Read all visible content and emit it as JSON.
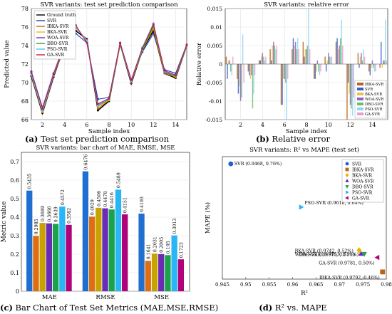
{
  "captions": {
    "a": {
      "letter": "(a)",
      "text": " Test set prediction comparison"
    },
    "b": {
      "letter": "(b)",
      "text": " Relative error"
    },
    "c": {
      "letter": "(c)",
      "text": " Bar Chart of Test Set Metrics (MAE,MSE,RMSE)"
    },
    "d": {
      "letter": "(d)",
      "text": " R² vs. MAPE"
    }
  },
  "chart_data": [
    {
      "id": "a",
      "type": "line",
      "title": "SVR variants: test set prediction comparison",
      "xlabel": "Sample index",
      "ylabel": "Predicted value",
      "xlim": [
        1,
        15
      ],
      "ylim": [
        66,
        78
      ],
      "xticks": [
        2,
        4,
        6,
        8,
        10,
        12,
        14
      ],
      "yticks": [
        66,
        68,
        70,
        72,
        74,
        76,
        78
      ],
      "x": [
        1,
        2,
        3,
        4,
        5,
        6,
        7,
        8,
        9,
        10,
        11,
        12,
        13,
        14,
        15
      ],
      "legend_position": "top-left",
      "series": [
        {
          "name": "Ground truth",
          "color": "#000000",
          "values": [
            70.7,
            66.7,
            70.6,
            74.1,
            75.6,
            74.7,
            67.0,
            68.0,
            74.2,
            69.9,
            73.5,
            75.6,
            71.0,
            70.5,
            74.0
          ]
        },
        {
          "name": "SVR",
          "color": "#1f3fb4",
          "values": [
            71.2,
            67.3,
            71.0,
            74.2,
            75.3,
            74.3,
            68.2,
            68.4,
            74.3,
            70.3,
            73.3,
            75.3,
            71.4,
            71.0,
            74.1
          ]
        },
        {
          "name": "IBKA-SVR",
          "color": "#d95f02",
          "values": [
            70.8,
            66.8,
            70.7,
            74.1,
            75.9,
            74.6,
            67.2,
            68.1,
            74.2,
            70.0,
            73.6,
            75.8,
            71.0,
            70.6,
            74.0
          ]
        },
        {
          "name": "BKA-SVR",
          "color": "#e6c000",
          "values": [
            70.9,
            66.9,
            70.8,
            74.1,
            76.0,
            74.5,
            67.4,
            68.1,
            74.2,
            70.1,
            73.5,
            76.0,
            71.1,
            70.6,
            74.0
          ]
        },
        {
          "name": "WOA-SVR",
          "color": "#7b2cbf",
          "values": [
            71.0,
            67.0,
            70.8,
            74.2,
            76.1,
            74.4,
            67.5,
            68.2,
            74.3,
            70.1,
            73.7,
            76.2,
            71.1,
            70.7,
            74.1
          ]
        },
        {
          "name": "DBO-SVR",
          "color": "#2ca02c",
          "values": [
            71.0,
            67.1,
            70.9,
            74.1,
            76.1,
            74.4,
            67.6,
            68.2,
            74.2,
            70.2,
            73.6,
            76.1,
            71.2,
            70.7,
            74.0
          ]
        },
        {
          "name": "PSO-SVR",
          "color": "#4fc3f7",
          "values": [
            70.9,
            67.0,
            70.8,
            74.2,
            76.0,
            74.5,
            67.5,
            68.3,
            74.3,
            70.2,
            73.8,
            76.4,
            71.2,
            70.8,
            74.1
          ]
        },
        {
          "name": "GA-SVR",
          "color": "#c2185b",
          "values": [
            71.1,
            67.2,
            70.9,
            74.2,
            76.2,
            74.3,
            67.7,
            68.3,
            74.3,
            70.3,
            73.7,
            76.3,
            71.3,
            70.8,
            74.1
          ]
        }
      ]
    },
    {
      "id": "b",
      "type": "bar",
      "title": "SVR variants: relative error",
      "xlabel": "Sample index",
      "ylabel": "Relative error",
      "xlim": [
        0.6,
        15.4
      ],
      "ylim": [
        -0.015,
        0.015
      ],
      "xticks": [
        2,
        4,
        6,
        8,
        10,
        12,
        14
      ],
      "yticks": [
        -0.015,
        -0.01,
        -0.005,
        0,
        0.005,
        0.01,
        0.015
      ],
      "ytick_labels": [
        "-0.015",
        "-0.01",
        "-0.005",
        "0",
        "0.005",
        "0.01",
        "0.015"
      ],
      "categories": [
        1,
        2,
        3,
        4,
        5,
        6,
        7,
        8,
        9,
        10,
        11,
        12,
        13,
        14,
        15
      ],
      "legend_position": "bottom-right",
      "series": [
        {
          "name": "IBKA-SVR",
          "color": "#b5651d",
          "values": [
            0.002,
            -0.004,
            -0.002,
            0.001,
            0.004,
            -0.011,
            0.004,
            0.006,
            -0.004,
            0.002,
            0.006,
            -0.015,
            0.003,
            -0.002,
            -0.001
          ]
        },
        {
          "name": "SVR",
          "color": "#3a5fcd",
          "values": [
            -0.004,
            -0.008,
            -0.003,
            0.001,
            0.001,
            -0.011,
            0.007,
            0.002,
            -0.004,
            -0.002,
            0.007,
            -0.005,
            -0.001,
            -0.003,
            0.006
          ]
        },
        {
          "name": "BKA-SVR",
          "color": "#e8c34a",
          "values": [
            0.001,
            -0.006,
            -0.004,
            0.002,
            0.005,
            -0.004,
            0.005,
            0.004,
            -0.002,
            0.001,
            0.004,
            -0.008,
            0.002,
            -0.001,
            -0.001
          ]
        },
        {
          "name": "WOA-SVR",
          "color": "#8e63c7",
          "values": [
            0.001,
            -0.01,
            -0.003,
            0.003,
            0.006,
            -0.004,
            0.006,
            0.004,
            0.001,
            0.003,
            0.005,
            -0.011,
            0.003,
            0.001,
            0.001
          ]
        },
        {
          "name": "DBO-SVR",
          "color": "#6dbf67",
          "values": [
            -0.002,
            -0.009,
            -0.012,
            0.002,
            0.005,
            -0.005,
            0.004,
            0.005,
            -0.002,
            0.002,
            0.007,
            -0.012,
            0.001,
            -0.001,
            0.001
          ]
        },
        {
          "name": "PSO-SVR",
          "color": "#8fd3f5",
          "values": [
            -0.003,
            0.008,
            -0.008,
            0.001,
            0.004,
            -0.015,
            0.007,
            0.015,
            -0.003,
            0.002,
            0.012,
            -0.014,
            0.004,
            -0.002,
            0.012
          ]
        },
        {
          "name": "GA-SVR",
          "color": "#e89fd0",
          "values": [
            0.002,
            -0.005,
            -0.003,
            0.002,
            0.005,
            -0.004,
            0.004,
            0.004,
            -0.002,
            0.002,
            0.005,
            -0.009,
            0.002,
            -0.002,
            0.001
          ]
        }
      ]
    },
    {
      "id": "c",
      "type": "bar",
      "title": "SVR variants: bar chart of MAE, RMSE, MSE",
      "xlabel": "",
      "ylabel": "Metric value",
      "ylim": [
        0,
        0.75
      ],
      "yticks": [
        0,
        0.1,
        0.2,
        0.3,
        0.4,
        0.5,
        0.6,
        0.7
      ],
      "ytick_labels": [
        "0",
        "0.1",
        "0.2",
        "0.3",
        "0.4",
        "0.5",
        "0.6",
        "0.7"
      ],
      "categories": [
        "MAE",
        "RMSE",
        "MSE"
      ],
      "series": [
        {
          "name": "SVR",
          "color": "#1f6fd1",
          "values": [
            0.5435,
            0.6476,
            0.4193
          ],
          "labels": [
            "0.5435",
            "0.6476",
            "0.4193"
          ]
        },
        {
          "name": "IBKA-SVR",
          "color": "#e06d10",
          "values": [
            0.2985,
            0.4029,
            0.1641
          ],
          "labels": [
            "0.2985",
            "0.4029",
            "0.1641"
          ]
        },
        {
          "name": "BKA-SVR",
          "color": "#c8a200",
          "values": [
            0.3689,
            0.4506,
            0.2031
          ],
          "labels": [
            "0.3689",
            "0.4506",
            "0.2031"
          ]
        },
        {
          "name": "WOA-SVR",
          "color": "#6a2bb5",
          "values": [
            0.3666,
            0.4478,
            0.2005
          ],
          "labels": [
            "0.3666",
            "0.4478",
            "0.2005"
          ]
        },
        {
          "name": "DBO-SVR",
          "color": "#1aa34a",
          "values": [
            0.3639,
            0.4416,
            0.195
          ],
          "labels": [
            "0.3639",
            "0.4416",
            "0.195"
          ]
        },
        {
          "name": "PSO-SVR",
          "color": "#29b6f6",
          "values": [
            0.4572,
            0.5489,
            0.3013
          ],
          "labels": [
            "0.4572",
            "0.5489",
            "0.3013"
          ]
        },
        {
          "name": "GA-SVR",
          "color": "#b0007a",
          "values": [
            0.3582,
            0.4151,
            0.1723
          ],
          "labels": [
            "0.3582",
            "0.4151",
            "0.1723"
          ]
        }
      ]
    },
    {
      "id": "d",
      "type": "scatter",
      "title": "SVR variants: R² vs MAPE (test set)",
      "xlabel": "R²",
      "ylabel": "MAPE (%)",
      "xlim": [
        0.945,
        0.98
      ],
      "ylim": [
        0.44,
        0.78
      ],
      "xticks": [
        0.945,
        0.95,
        0.955,
        0.96,
        0.965,
        0.97,
        0.975,
        0.98
      ],
      "xtick_labels": [
        "0.945",
        "0.95",
        "0.955",
        "0.96",
        "0.965",
        "0.97",
        "0.975",
        "0.98"
      ],
      "legend_position": "top-right",
      "points": [
        {
          "name": "SVR",
          "color": "#1f5fcf",
          "marker": "circle",
          "x": 0.9468,
          "y": 0.76,
          "label": "SVR (0.9468, 0.76%)"
        },
        {
          "name": "IBKA-SVR",
          "color": "#b8651a",
          "marker": "square",
          "x": 0.9792,
          "y": 0.46,
          "label": "IBKA-SVR (0.9792, 0.46%)"
        },
        {
          "name": "BKA-SVR",
          "color": "#e6b800",
          "marker": "diamond",
          "x": 0.9742,
          "y": 0.52,
          "label": "BKA-SVR (0.9742, 0.52%)"
        },
        {
          "name": "WOA-SVR",
          "color": "#6a2bb5",
          "marker": "triangle-up",
          "x": 0.9746,
          "y": 0.51,
          "label": "WOA-SVR (0.9746, 0.51%)"
        },
        {
          "name": "DBO-SVR",
          "color": "#1aa34a",
          "marker": "triangle-down",
          "x": 0.9753,
          "y": 0.51,
          "label": "DBO-SVR (0.9753, 0.51%)"
        },
        {
          "name": "PSO-SVR",
          "color": "#29b6f6",
          "marker": "triangle-right",
          "x": 0.9618,
          "y": 0.64,
          "label": "PSO-SVR (0.9618, 0.64%)"
        },
        {
          "name": "GA-SVR",
          "color": "#b0007a",
          "marker": "triangle-left",
          "x": 0.9781,
          "y": 0.5,
          "label": "GA-SVR (0.9781, 0.50%)"
        }
      ]
    }
  ]
}
